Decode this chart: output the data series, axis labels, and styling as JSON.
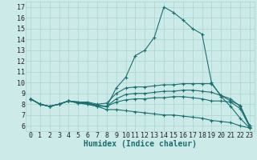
{
  "title": "",
  "xlabel": "Humidex (Indice chaleur)",
  "ylabel": "",
  "background_color": "#cceae7",
  "grid_color": "#aad4d0",
  "line_color": "#1a7070",
  "xlim": [
    -0.5,
    23.5
  ],
  "ylim": [
    5.5,
    17.5
  ],
  "x_ticks": [
    0,
    1,
    2,
    3,
    4,
    5,
    6,
    7,
    8,
    9,
    10,
    11,
    12,
    13,
    14,
    15,
    16,
    17,
    18,
    19,
    20,
    21,
    22,
    23
  ],
  "y_ticks": [
    6,
    7,
    8,
    9,
    10,
    11,
    12,
    13,
    14,
    15,
    16,
    17
  ],
  "series": [
    [
      8.5,
      8.0,
      7.8,
      8.0,
      8.3,
      8.1,
      8.0,
      7.8,
      7.8,
      9.5,
      10.5,
      12.5,
      13.0,
      14.2,
      17.0,
      16.5,
      15.8,
      15.0,
      14.5,
      10.0,
      8.7,
      7.8,
      6.7,
      5.8
    ],
    [
      8.5,
      8.0,
      7.8,
      8.0,
      8.3,
      8.2,
      8.2,
      8.0,
      8.1,
      9.0,
      9.5,
      9.6,
      9.6,
      9.7,
      9.8,
      9.8,
      9.9,
      9.9,
      9.9,
      9.9,
      8.8,
      8.3,
      7.9,
      6.0
    ],
    [
      8.5,
      8.0,
      7.8,
      8.0,
      8.3,
      8.2,
      8.1,
      7.9,
      7.8,
      8.5,
      8.9,
      9.0,
      9.0,
      9.1,
      9.2,
      9.2,
      9.3,
      9.3,
      9.2,
      9.1,
      8.8,
      8.5,
      7.8,
      6.0
    ],
    [
      8.5,
      8.0,
      7.8,
      8.0,
      8.3,
      8.2,
      8.1,
      7.9,
      7.8,
      8.2,
      8.4,
      8.5,
      8.5,
      8.6,
      8.6,
      8.7,
      8.7,
      8.6,
      8.5,
      8.3,
      8.3,
      8.2,
      7.6,
      5.9
    ],
    [
      8.5,
      8.0,
      7.8,
      8.0,
      8.3,
      8.1,
      8.0,
      7.8,
      7.5,
      7.5,
      7.4,
      7.3,
      7.2,
      7.1,
      7.0,
      7.0,
      6.9,
      6.8,
      6.7,
      6.5,
      6.4,
      6.3,
      6.0,
      5.8
    ]
  ],
  "tick_fontsize": 6,
  "xlabel_fontsize": 7,
  "xlabel_color": "#1a7070",
  "xlabel_bold": true
}
